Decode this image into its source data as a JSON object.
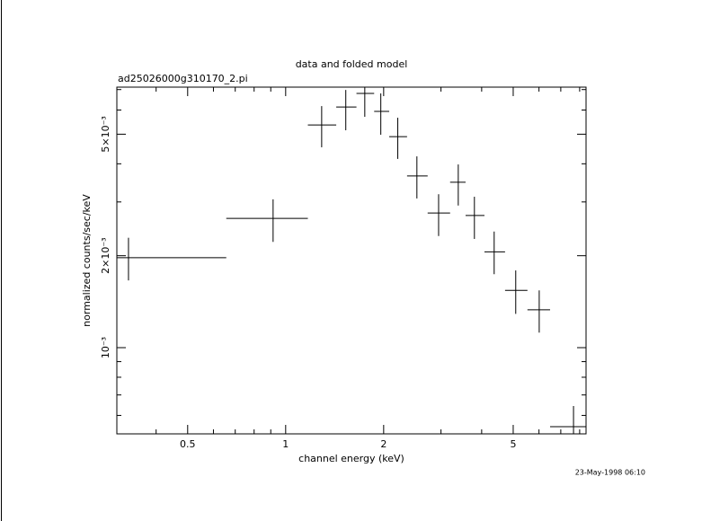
{
  "chart_data": {
    "type": "errorbar",
    "title": "data and folded model",
    "subtitle": "ad25026000g310170_2.pi",
    "xlabel": "channel energy (keV)",
    "ylabel": "normalized counts/sec/keV",
    "annotation": "23-May-1998 06:10",
    "xscale": "log",
    "yscale": "log",
    "color": "#000000",
    "xlim": [
      0.303,
      8.37
    ],
    "ylim": [
      0.000522,
      0.00713
    ],
    "xticks": [
      0.5,
      1,
      2,
      5
    ],
    "xminorticks": [
      0.4,
      0.6,
      0.7,
      0.8,
      0.9,
      3,
      4,
      6,
      7,
      8
    ],
    "yticks": [
      {
        "value": 0.001,
        "label": "10⁻³"
      },
      {
        "value": 0.002,
        "label": "2×10⁻³"
      },
      {
        "value": 0.005,
        "label": "5×10⁻³"
      }
    ],
    "yminorticks": [
      0.0006,
      0.0007,
      0.0008,
      0.0009,
      0.003,
      0.004,
      0.006,
      0.007
    ],
    "x": [
      0.329,
      0.915,
      1.29,
      1.53,
      1.75,
      1.96,
      2.21,
      2.53,
      2.95,
      3.39,
      3.8,
      4.37,
      5.09,
      6.01,
      7.66
    ],
    "x_low": [
      0.303,
      0.657,
      1.17,
      1.43,
      1.65,
      1.87,
      2.08,
      2.36,
      2.73,
      3.2,
      3.57,
      4.08,
      4.72,
      5.53,
      6.49
    ],
    "x_high": [
      0.657,
      1.17,
      1.43,
      1.65,
      1.87,
      2.08,
      2.36,
      2.73,
      3.2,
      3.57,
      4.08,
      4.72,
      5.53,
      6.49,
      8.37
    ],
    "values": [
      0.00197,
      0.00265,
      0.00536,
      0.00614,
      0.0068,
      0.00594,
      0.00491,
      0.00365,
      0.00276,
      0.00348,
      0.00271,
      0.00206,
      0.00154,
      0.00133,
      0.000551
    ],
    "y_low": [
      0.00166,
      0.00222,
      0.00453,
      0.00515,
      0.0057,
      0.00498,
      0.00415,
      0.00308,
      0.00232,
      0.00292,
      0.00227,
      0.00174,
      0.00129,
      0.00112,
      0.000522
    ],
    "y_high": [
      0.00229,
      0.00306,
      0.00618,
      0.00698,
      0.00713,
      0.0068,
      0.00566,
      0.00423,
      0.00318,
      0.00398,
      0.00312,
      0.0024,
      0.00179,
      0.00154,
      0.000644
    ]
  }
}
